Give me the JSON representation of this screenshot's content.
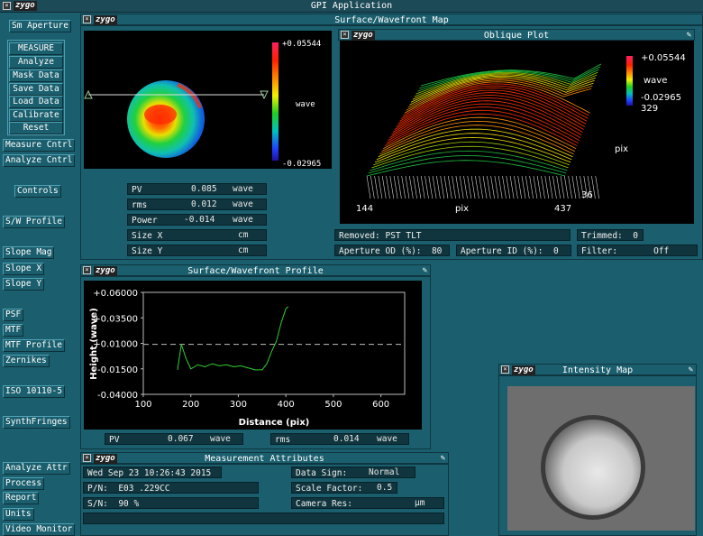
{
  "app": {
    "title": "GPI Application"
  },
  "logo": "zygo",
  "sidebar": {
    "aperture_button": "Sm Aperture",
    "group": [
      "MEASURE",
      "Analyze",
      "Mask Data",
      "Save Data",
      "Load Data",
      "Calibrate",
      "Reset"
    ],
    "items": [
      {
        "label": "Measure Cntrl"
      },
      {
        "label": "Analyze Cntrl"
      },
      {
        "label": "Controls"
      },
      {
        "label": "S/W Profile"
      },
      {
        "label": "Slope Mag"
      },
      {
        "label": "Slope X"
      },
      {
        "label": "Slope Y"
      },
      {
        "label": "PSF"
      },
      {
        "label": "MTF"
      },
      {
        "label": "MTF Profile"
      },
      {
        "label": "Zernikes"
      },
      {
        "label": "ISO 10110-5"
      },
      {
        "label": "SynthFringes"
      },
      {
        "label": "Analyze Attr"
      },
      {
        "label": "Process"
      },
      {
        "label": "Report"
      },
      {
        "label": "Units"
      },
      {
        "label": "Video Monitor"
      }
    ]
  },
  "surface_map": {
    "title": "Surface/Wavefront Map",
    "scale_max": "+0.05544",
    "scale_unit": "wave",
    "scale_min": "-0.02965",
    "stats": [
      {
        "label": "PV",
        "value": "0.085",
        "unit": "wave"
      },
      {
        "label": "rms",
        "value": "0.012",
        "unit": "wave"
      },
      {
        "label": "Power",
        "value": "-0.014",
        "unit": "wave"
      },
      {
        "label": "Size X",
        "value": "",
        "unit": "cm"
      },
      {
        "label": "Size Y",
        "value": "",
        "unit": "cm"
      }
    ]
  },
  "oblique": {
    "title": "Oblique Plot",
    "scale_max": "+0.05544",
    "scale_unit": "wave",
    "scale_min": "-0.02965",
    "y_top": "329",
    "y_label": "pix",
    "y_bottom": "36",
    "x_left": "144",
    "x_label": "pix",
    "x_right": "437",
    "removed": "Removed: PST TLT",
    "trimmed": "Trimmed:  0",
    "aperture_od": "Aperture OD (%):  80",
    "aperture_id": "Aperture ID (%):  0",
    "filter": "Filter:       Off"
  },
  "profile": {
    "title": "Surface/Wavefront Profile",
    "ylabel": "Height (wave)",
    "xlabel": "Distance (pix)",
    "yticks": [
      "+0.06000",
      "+0.03500",
      "+0.01000",
      "-0.01500",
      "-0.04000"
    ],
    "xticks": [
      "100",
      "200",
      "300",
      "400",
      "500",
      "600"
    ],
    "pv": {
      "label": "PV",
      "value": "0.067",
      "unit": "wave"
    },
    "rms": {
      "label": "rms",
      "value": "0.014",
      "unit": "wave"
    }
  },
  "chart_data": {
    "type": "line",
    "xlabel": "Distance (pix)",
    "ylabel": "Height (wave)",
    "xlim": [
      100,
      650
    ],
    "ylim": [
      -0.04,
      0.06
    ],
    "x": [
      172,
      180,
      190,
      200,
      215,
      230,
      245,
      260,
      275,
      290,
      305,
      320,
      335,
      350,
      360,
      370,
      380,
      390,
      400,
      405
    ],
    "values": [
      -0.016,
      0.009,
      -0.005,
      -0.015,
      -0.011,
      -0.013,
      -0.01,
      -0.012,
      -0.011,
      -0.013,
      -0.012,
      -0.014,
      -0.016,
      -0.016,
      -0.01,
      0.002,
      0.012,
      0.03,
      0.044,
      0.046
    ],
    "reference_line": 0.009
  },
  "measurement": {
    "title": "Measurement Attributes",
    "date": "Wed Sep 23 10:26:43 2015",
    "pn": "P/N:  E03 .229CC",
    "sn": "S/N:  90 %",
    "data_sign_label": "Data Sign:",
    "data_sign_value": "Normal",
    "scale_factor_label": "Scale Factor:",
    "scale_factor_value": "0.5",
    "camera_res_label": "Camera Res:",
    "camera_res_unit": "µm"
  },
  "intensity": {
    "title": "Intensity Map"
  }
}
